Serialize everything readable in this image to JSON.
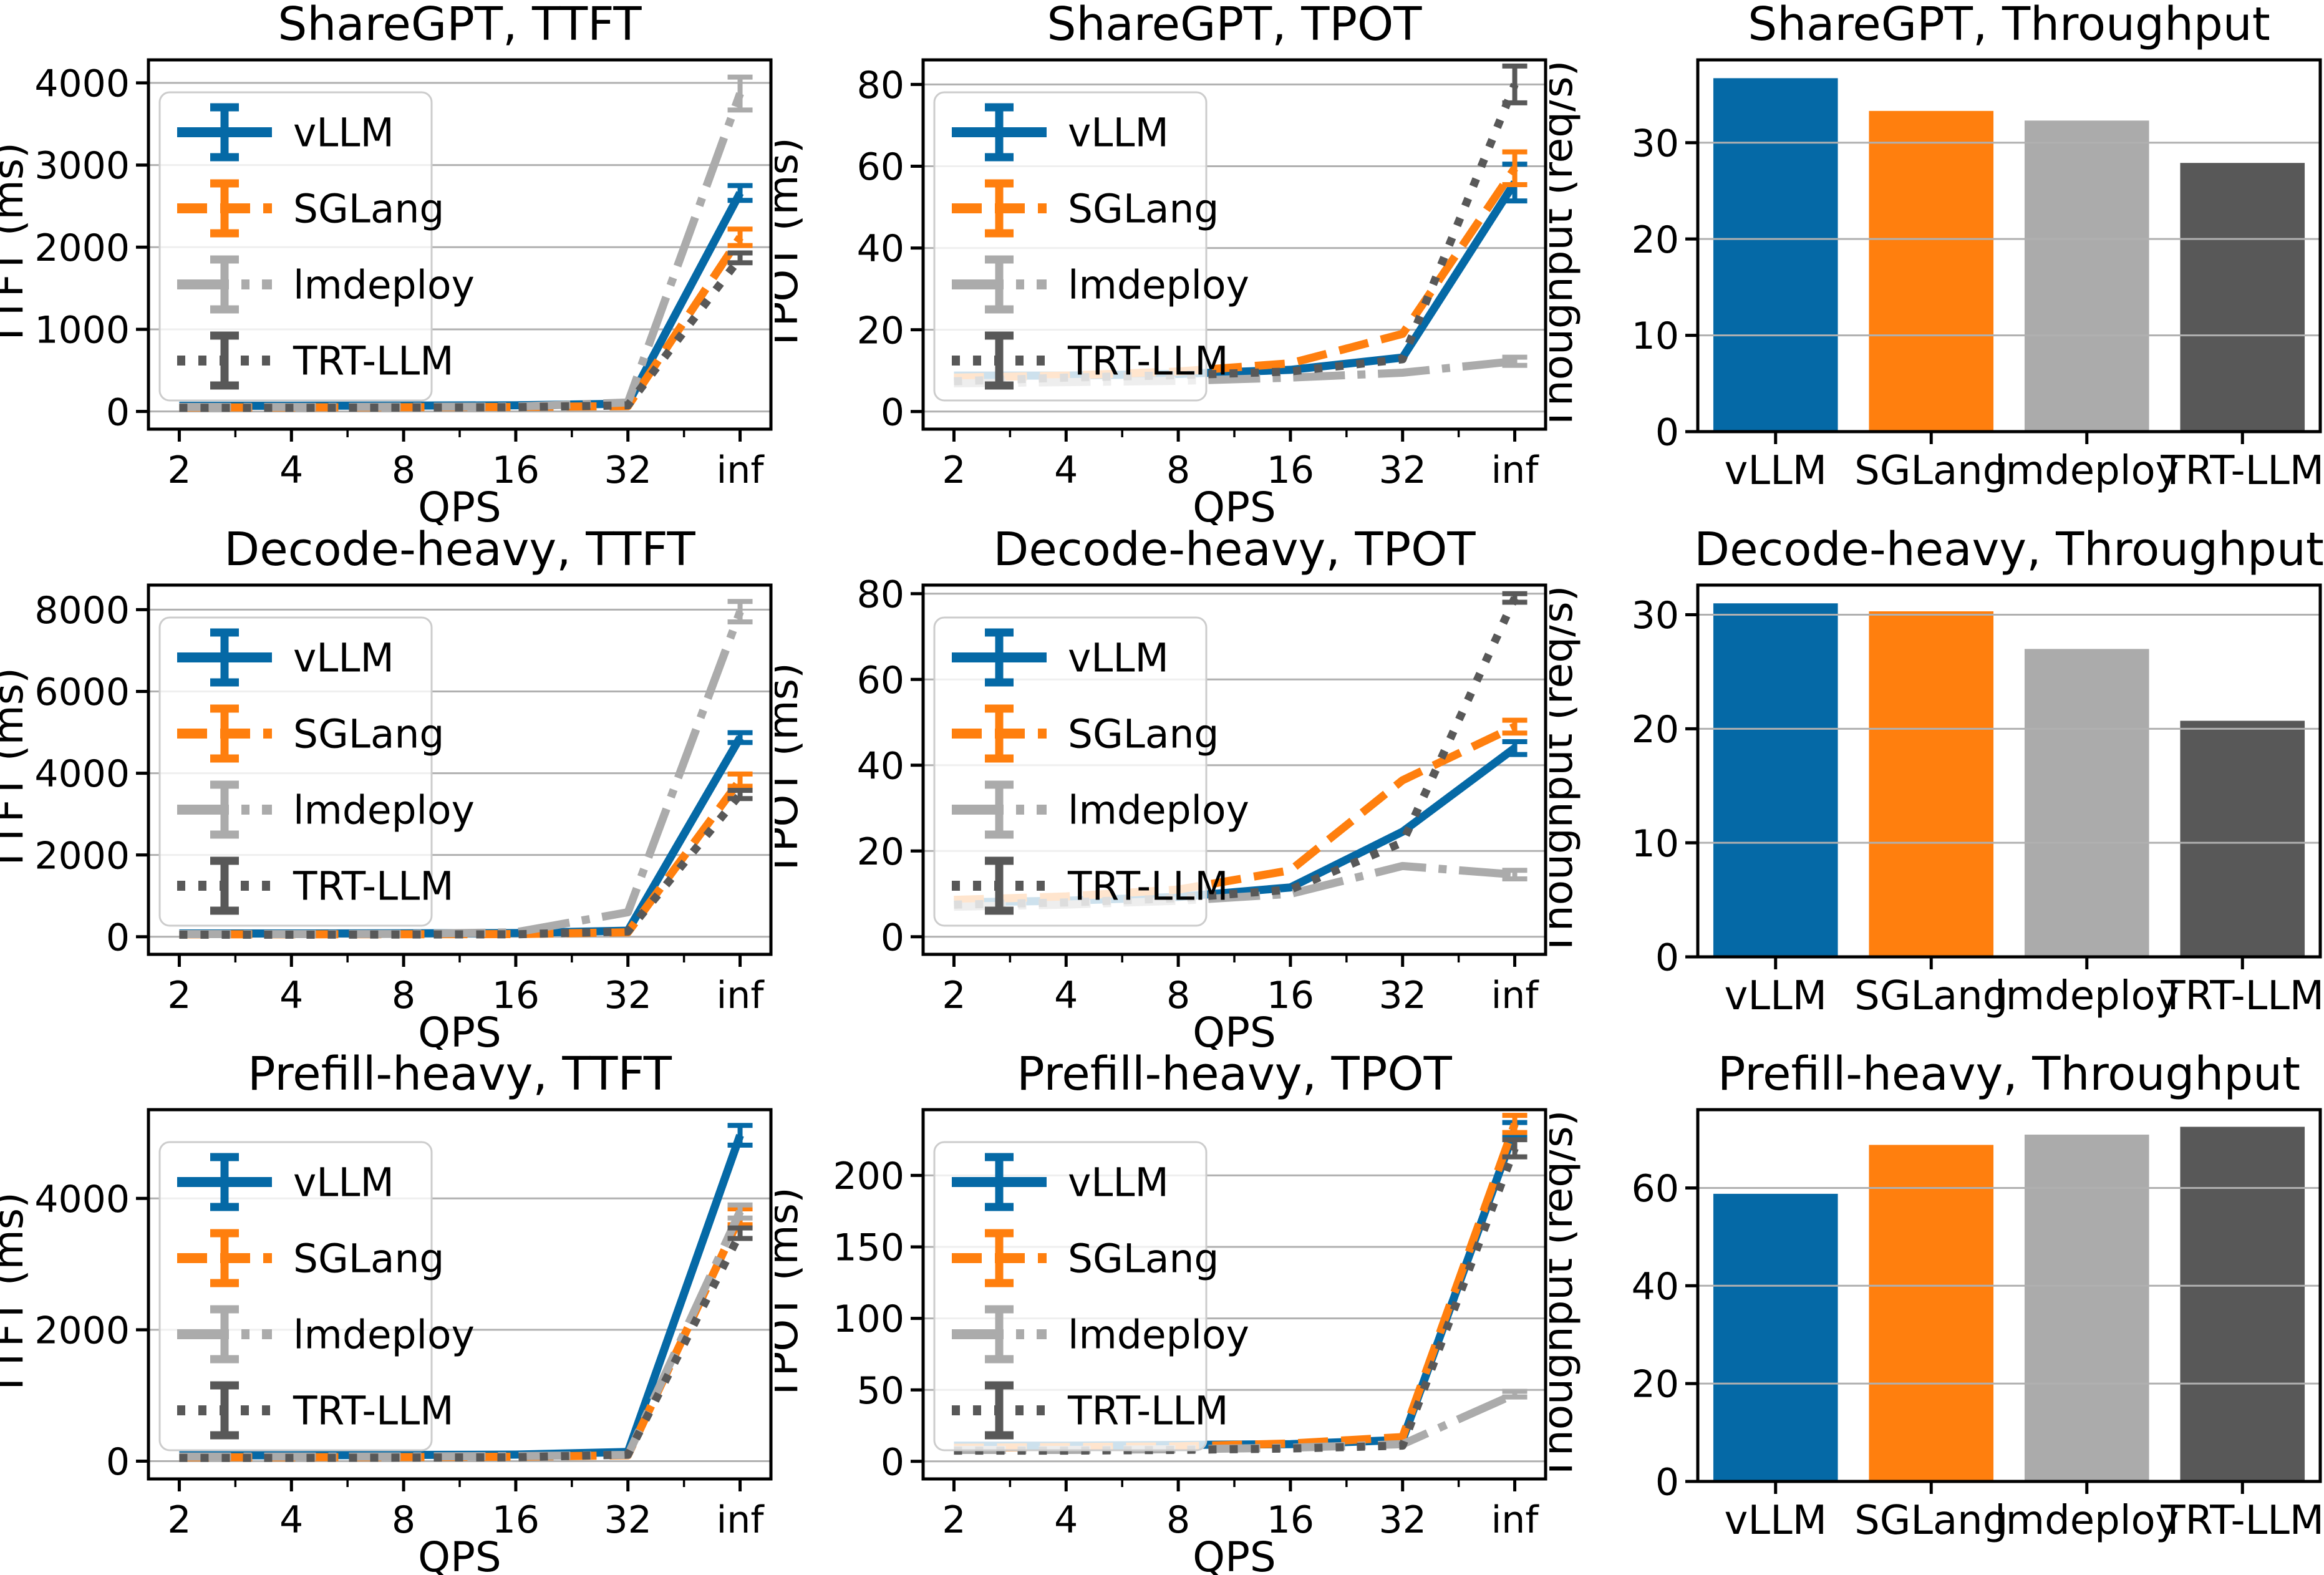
{
  "colors": {
    "background": "#ffffff",
    "grid": "#b0b0b0",
    "axis": "#000000",
    "legend_border": "#cccccc",
    "legend_fill": "rgba(255,255,255,0.8)",
    "series": {
      "vLLM": "#0569a6",
      "SGLang": "#ff7f0e",
      "lmdeploy": "#ababab",
      "TRT-LLM": "#585858"
    }
  },
  "legend_labels": [
    "vLLM",
    "SGLang",
    "lmdeploy",
    "TRT-LLM"
  ],
  "chart_data": [
    {
      "type": "line",
      "title": "ShareGPT, TTFT",
      "xlabel": "QPS",
      "ylabel": "TTFT (ms)",
      "x_scale": "log2",
      "x_tick_labels": [
        "2",
        "4",
        "8",
        "16",
        "32",
        "inf"
      ],
      "ylim": [
        -215,
        4280
      ],
      "yticks": [
        0,
        1000,
        2000,
        3000,
        4000
      ],
      "grid": "horizontal",
      "legend": true,
      "series": [
        {
          "name": "vLLM",
          "color": "#0569a6",
          "dash": "solid",
          "values": [
            70,
            70,
            72,
            75,
            95,
            2660
          ],
          "err_inf": 90
        },
        {
          "name": "SGLang",
          "color": "#ff7f0e",
          "dash": "dashed",
          "values": [
            50,
            50,
            52,
            55,
            65,
            2120
          ],
          "err_inf": 100
        },
        {
          "name": "lmdeploy",
          "color": "#ababab",
          "dash": "dashdot",
          "values": [
            55,
            55,
            58,
            60,
            110,
            3870
          ],
          "err_inf": 200
        },
        {
          "name": "TRT-LLM",
          "color": "#585858",
          "dash": "dotted",
          "values": [
            45,
            45,
            48,
            52,
            75,
            1870
          ],
          "err_inf": 60
        }
      ]
    },
    {
      "type": "line",
      "title": "ShareGPT, TPOT",
      "xlabel": "QPS",
      "ylabel": "TPOT (ms)",
      "x_scale": "log2",
      "x_tick_labels": [
        "2",
        "4",
        "8",
        "16",
        "32",
        "inf"
      ],
      "ylim": [
        -4.3,
        86
      ],
      "yticks": [
        0,
        20,
        40,
        60,
        80
      ],
      "grid": "horizontal",
      "legend": true,
      "series": [
        {
          "name": "vLLM",
          "color": "#0569a6",
          "dash": "solid",
          "values": [
            8.8,
            8.8,
            9.2,
            10.2,
            13.2,
            56
          ],
          "err_inf": 4.5
        },
        {
          "name": "SGLang",
          "color": "#ff7f0e",
          "dash": "dashed",
          "values": [
            8.3,
            8.8,
            9.8,
            11.8,
            19.0,
            59.5
          ],
          "err_inf": 4.0
        },
        {
          "name": "lmdeploy",
          "color": "#ababab",
          "dash": "dashdot",
          "values": [
            6.9,
            7.2,
            7.5,
            8.3,
            9.5,
            12.3
          ],
          "err_inf": 1.0
        },
        {
          "name": "TRT-LLM",
          "color": "#585858",
          "dash": "dotted",
          "values": [
            7.4,
            8.3,
            8.9,
            9.8,
            12.8,
            80
          ],
          "err_inf": 4.5
        }
      ]
    },
    {
      "type": "bar",
      "title": "ShareGPT, Throughput",
      "xlabel": "",
      "ylabel": "Thoughput (req/s)",
      "categories": [
        "vLLM",
        "SGLang",
        "lmdeploy",
        "TRT-LLM"
      ],
      "values": [
        36.7,
        33.3,
        32.3,
        27.9
      ],
      "bar_colors": [
        "#0569a6",
        "#ff7f0e",
        "#ababab",
        "#585858"
      ],
      "ylim": [
        0,
        38.6
      ],
      "yticks": [
        0,
        10,
        20,
        30
      ],
      "grid": "horizontal",
      "legend": false
    },
    {
      "type": "line",
      "title": "Decode-heavy, TTFT",
      "xlabel": "QPS",
      "ylabel": "TTFT (ms)",
      "x_scale": "log2",
      "x_tick_labels": [
        "2",
        "4",
        "8",
        "16",
        "32",
        "inf"
      ],
      "ylim": [
        -430,
        8600
      ],
      "yticks": [
        0,
        2000,
        4000,
        6000,
        8000
      ],
      "grid": "horizontal",
      "legend": true,
      "series": [
        {
          "name": "vLLM",
          "color": "#0569a6",
          "dash": "solid",
          "values": [
            80,
            80,
            85,
            90,
            150,
            4870
          ],
          "err_inf": 120
        },
        {
          "name": "SGLang",
          "color": "#ff7f0e",
          "dash": "dashed",
          "values": [
            60,
            60,
            62,
            65,
            110,
            3830
          ],
          "err_inf": 150
        },
        {
          "name": "lmdeploy",
          "color": "#ababab",
          "dash": "dashdot",
          "values": [
            65,
            65,
            70,
            110,
            600,
            7950
          ],
          "err_inf": 250
        },
        {
          "name": "TRT-LLM",
          "color": "#585858",
          "dash": "dotted",
          "values": [
            50,
            50,
            55,
            60,
            130,
            3480
          ],
          "err_inf": 100
        }
      ]
    },
    {
      "type": "line",
      "title": "Decode-heavy, TPOT",
      "xlabel": "QPS",
      "ylabel": "TPOT (ms)",
      "x_scale": "log2",
      "x_tick_labels": [
        "2",
        "4",
        "8",
        "16",
        "32",
        "inf"
      ],
      "ylim": [
        -4.1,
        82
      ],
      "yticks": [
        0,
        20,
        40,
        60,
        80
      ],
      "grid": "horizontal",
      "legend": true,
      "series": [
        {
          "name": "vLLM",
          "color": "#0569a6",
          "dash": "solid",
          "values": [
            8.0,
            8.4,
            9.3,
            11.5,
            24.5,
            44
          ],
          "err_inf": 1.5
        },
        {
          "name": "SGLang",
          "color": "#ff7f0e",
          "dash": "dashed",
          "values": [
            8.6,
            9.4,
            11.0,
            15.5,
            36.5,
            49
          ],
          "err_inf": 1.5
        },
        {
          "name": "lmdeploy",
          "color": "#ababab",
          "dash": "dashdot",
          "values": [
            7.0,
            7.5,
            8.4,
            10.0,
            16.5,
            14.5
          ],
          "err_inf": 1.0
        },
        {
          "name": "TRT-LLM",
          "color": "#585858",
          "dash": "dotted",
          "values": [
            7.5,
            8.0,
            9.0,
            11.0,
            22.0,
            79
          ],
          "err_inf": 1.0
        }
      ]
    },
    {
      "type": "bar",
      "title": "Decode-heavy, Throughput",
      "xlabel": "",
      "ylabel": "Thoughput (req/s)",
      "categories": [
        "vLLM",
        "SGLang",
        "lmdeploy",
        "TRT-LLM"
      ],
      "values": [
        31.0,
        30.3,
        27.0,
        20.7
      ],
      "bar_colors": [
        "#0569a6",
        "#ff7f0e",
        "#ababab",
        "#585858"
      ],
      "ylim": [
        0,
        32.6
      ],
      "yticks": [
        0,
        10,
        20,
        30
      ],
      "grid": "horizontal",
      "legend": false
    },
    {
      "type": "line",
      "title": "Prefill-heavy, TTFT",
      "xlabel": "QPS",
      "ylabel": "TTFT (ms)",
      "x_scale": "log2",
      "x_tick_labels": [
        "2",
        "4",
        "8",
        "16",
        "32",
        "inf"
      ],
      "ylim": [
        -270,
        5350
      ],
      "yticks": [
        0,
        2000,
        4000
      ],
      "grid": "horizontal",
      "legend": true,
      "series": [
        {
          "name": "vLLM",
          "color": "#0569a6",
          "dash": "solid",
          "values": [
            90,
            90,
            95,
            100,
            140,
            4960
          ],
          "err_inf": 150
        },
        {
          "name": "SGLang",
          "color": "#ff7f0e",
          "dash": "dashed",
          "values": [
            60,
            60,
            62,
            68,
            90,
            3720
          ],
          "err_inf": 120
        },
        {
          "name": "lmdeploy",
          "color": "#ababab",
          "dash": "dashdot",
          "values": [
            70,
            70,
            72,
            78,
            95,
            3800
          ],
          "err_inf": 100
        },
        {
          "name": "TRT-LLM",
          "color": "#585858",
          "dash": "dotted",
          "values": [
            50,
            50,
            55,
            60,
            100,
            3470
          ],
          "err_inf": 80
        }
      ]
    },
    {
      "type": "line",
      "title": "Prefill-heavy, TPOT",
      "xlabel": "QPS",
      "ylabel": "TPOT (ms)",
      "x_scale": "log2",
      "x_tick_labels": [
        "2",
        "4",
        "8",
        "16",
        "32",
        "inf"
      ],
      "ylim": [
        -12.3,
        246
      ],
      "yticks": [
        0,
        50,
        100,
        150,
        200
      ],
      "grid": "horizontal",
      "legend": true,
      "series": [
        {
          "name": "vLLM",
          "color": "#0569a6",
          "dash": "solid",
          "values": [
            11,
            11,
            11.5,
            12,
            15,
            232
          ],
          "err_inf": 5
        },
        {
          "name": "SGLang",
          "color": "#ff7f0e",
          "dash": "dashed",
          "values": [
            9.5,
            10,
            10.5,
            12.5,
            17,
            236
          ],
          "err_inf": 6
        },
        {
          "name": "lmdeploy",
          "color": "#ababab",
          "dash": "dashdot",
          "values": [
            8,
            8,
            8.5,
            9.5,
            12,
            47
          ],
          "err_inf": 2
        },
        {
          "name": "TRT-LLM",
          "color": "#585858",
          "dash": "dotted",
          "values": [
            7.5,
            7.5,
            8,
            9,
            11,
            219
          ],
          "err_inf": 6
        }
      ]
    },
    {
      "type": "bar",
      "title": "Prefill-heavy, Throughput",
      "xlabel": "",
      "ylabel": "Thoughput (req/s)",
      "categories": [
        "vLLM",
        "SGLang",
        "lmdeploy",
        "TRT-LLM"
      ],
      "values": [
        58.8,
        68.8,
        70.9,
        72.5
      ],
      "bar_colors": [
        "#0569a6",
        "#ff7f0e",
        "#ababab",
        "#585858"
      ],
      "ylim": [
        0,
        76
      ],
      "yticks": [
        0,
        20,
        40,
        60
      ],
      "grid": "horizontal",
      "legend": false
    }
  ]
}
